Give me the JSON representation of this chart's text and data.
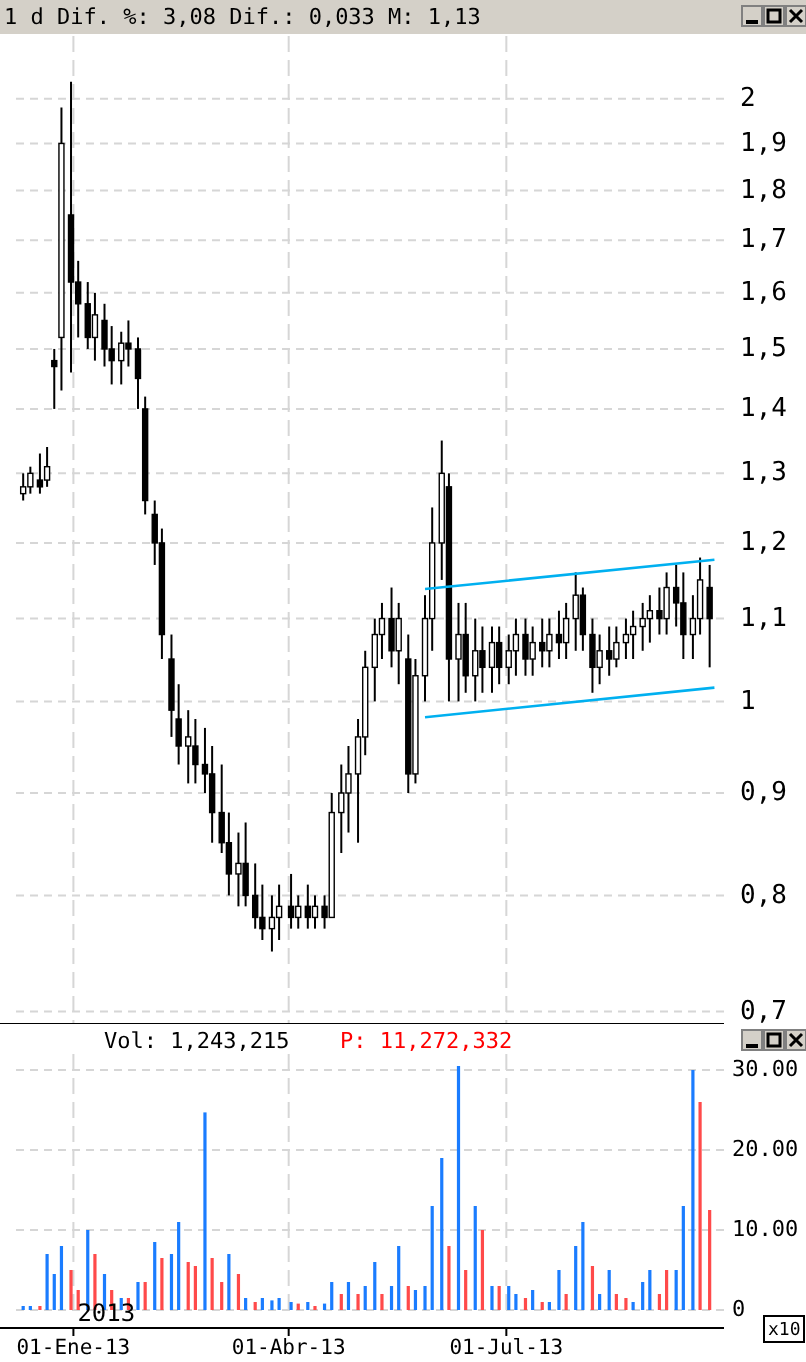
{
  "chart_data": [
    {
      "type": "candlestick",
      "title": "1 d Dif. %: 3,08 Dif.: 0,033 M: 1,13",
      "color": "#000000",
      "log": true,
      "grid": true,
      "tick_labels": "y",
      "xlim": [
        "2012-12-08",
        "2013-09-30"
      ],
      "xticks": [
        {
          "value": "2013-01-01",
          "label": null
        },
        {
          "value": "2013-04-01",
          "label": null
        },
        {
          "value": "2013-07-01",
          "label": null
        }
      ],
      "ylim": [
        0.69,
        2.15
      ],
      "yticks": [
        {
          "value": 0.7,
          "label": "0,7"
        },
        {
          "value": 0.8,
          "label": "0,8"
        },
        {
          "value": 0.9,
          "label": "0,9"
        },
        1,
        {
          "value": 1.1,
          "label": "1,1"
        },
        {
          "value": 1.2,
          "label": "1,2"
        },
        {
          "value": 1.3,
          "label": "1,3"
        },
        {
          "value": 1.4,
          "label": "1,4"
        },
        {
          "value": 1.5,
          "label": "1,5"
        },
        {
          "value": 1.6,
          "label": "1,6"
        },
        {
          "value": 1.7,
          "label": "1,7"
        },
        {
          "value": 1.8,
          "label": "1,8"
        },
        {
          "value": 1.9,
          "label": "1,9"
        },
        2
      ],
      "x": [
        "2012-12-11",
        "2012-12-14",
        "2012-12-18",
        "2012-12-21",
        "2012-12-24",
        "2012-12-27",
        "2012-12-31",
        "2013-01-03",
        "2013-01-07",
        "2013-01-10",
        "2013-01-14",
        "2013-01-17",
        "2013-01-21",
        "2013-01-24",
        "2013-01-28",
        "2013-01-31",
        "2013-02-04",
        "2013-02-07",
        "2013-02-11",
        "2013-02-14",
        "2013-02-18",
        "2013-02-21",
        "2013-02-25",
        "2013-02-28",
        "2013-03-04",
        "2013-03-07",
        "2013-03-11",
        "2013-03-14",
        "2013-03-18",
        "2013-03-21",
        "2013-03-25",
        "2013-03-28",
        "2013-04-02",
        "2013-04-05",
        "2013-04-09",
        "2013-04-12",
        "2013-04-16",
        "2013-04-19",
        "2013-04-23",
        "2013-04-26",
        "2013-04-30",
        "2013-05-03",
        "2013-05-07",
        "2013-05-10",
        "2013-05-14",
        "2013-05-17",
        "2013-05-21",
        "2013-05-24",
        "2013-05-28",
        "2013-05-31",
        "2013-06-04",
        "2013-06-07",
        "2013-06-11",
        "2013-06-14",
        "2013-06-18",
        "2013-06-21",
        "2013-06-25",
        "2013-06-28",
        "2013-07-02",
        "2013-07-05",
        "2013-07-09",
        "2013-07-12",
        "2013-07-16",
        "2013-07-19",
        "2013-07-23",
        "2013-07-26",
        "2013-07-30",
        "2013-08-02",
        "2013-08-06",
        "2013-08-09",
        "2013-08-13",
        "2013-08-16",
        "2013-08-20",
        "2013-08-23",
        "2013-08-27",
        "2013-08-30",
        "2013-09-03",
        "2013-09-06",
        "2013-09-10",
        "2013-09-13",
        "2013-09-17",
        "2013-09-20",
        "2013-09-24"
      ],
      "ohlc": [
        [
          1.27,
          1.3,
          1.26,
          1.28
        ],
        [
          1.28,
          1.31,
          1.27,
          1.3
        ],
        [
          1.29,
          1.33,
          1.27,
          1.28
        ],
        [
          1.29,
          1.34,
          1.28,
          1.31
        ],
        [
          1.48,
          1.5,
          1.4,
          1.47
        ],
        [
          1.52,
          1.98,
          1.43,
          1.9
        ],
        [
          1.75,
          2.04,
          1.46,
          1.62
        ],
        [
          1.62,
          1.66,
          1.52,
          1.58
        ],
        [
          1.58,
          1.62,
          1.5,
          1.52
        ],
        [
          1.52,
          1.6,
          1.48,
          1.56
        ],
        [
          1.55,
          1.58,
          1.47,
          1.5
        ],
        [
          1.5,
          1.54,
          1.44,
          1.48
        ],
        [
          1.48,
          1.53,
          1.44,
          1.51
        ],
        [
          1.51,
          1.55,
          1.47,
          1.5
        ],
        [
          1.5,
          1.52,
          1.4,
          1.45
        ],
        [
          1.4,
          1.42,
          1.24,
          1.26
        ],
        [
          1.24,
          1.26,
          1.17,
          1.2
        ],
        [
          1.2,
          1.22,
          1.05,
          1.08
        ],
        [
          1.05,
          1.08,
          0.96,
          0.99
        ],
        [
          0.98,
          1.02,
          0.93,
          0.95
        ],
        [
          0.95,
          0.99,
          0.91,
          0.96
        ],
        [
          0.95,
          0.98,
          0.91,
          0.93
        ],
        [
          0.93,
          0.97,
          0.9,
          0.92
        ],
        [
          0.92,
          0.95,
          0.85,
          0.88
        ],
        [
          0.88,
          0.93,
          0.84,
          0.85
        ],
        [
          0.85,
          0.88,
          0.8,
          0.82
        ],
        [
          0.82,
          0.86,
          0.79,
          0.83
        ],
        [
          0.83,
          0.87,
          0.79,
          0.8
        ],
        [
          0.8,
          0.83,
          0.77,
          0.78
        ],
        [
          0.78,
          0.81,
          0.76,
          0.77
        ],
        [
          0.77,
          0.8,
          0.75,
          0.78
        ],
        [
          0.78,
          0.81,
          0.76,
          0.79
        ],
        [
          0.79,
          0.82,
          0.77,
          0.78
        ],
        [
          0.78,
          0.8,
          0.77,
          0.79
        ],
        [
          0.79,
          0.81,
          0.77,
          0.78
        ],
        [
          0.78,
          0.8,
          0.77,
          0.79
        ],
        [
          0.79,
          0.8,
          0.77,
          0.78
        ],
        [
          0.78,
          0.9,
          0.78,
          0.88
        ],
        [
          0.88,
          0.93,
          0.84,
          0.9
        ],
        [
          0.9,
          0.95,
          0.86,
          0.92
        ],
        [
          0.92,
          0.98,
          0.85,
          0.96
        ],
        [
          0.96,
          1.06,
          0.94,
          1.04
        ],
        [
          1.04,
          1.1,
          1.0,
          1.08
        ],
        [
          1.08,
          1.12,
          1.05,
          1.1
        ],
        [
          1.1,
          1.14,
          1.04,
          1.06
        ],
        [
          1.06,
          1.12,
          1.02,
          1.1
        ],
        [
          1.05,
          1.08,
          0.9,
          0.92
        ],
        [
          0.92,
          1.05,
          0.91,
          1.03
        ],
        [
          1.03,
          1.13,
          1.0,
          1.1
        ],
        [
          1.1,
          1.25,
          1.06,
          1.2
        ],
        [
          1.2,
          1.35,
          1.15,
          1.3
        ],
        [
          1.28,
          1.3,
          1.0,
          1.05
        ],
        [
          1.05,
          1.12,
          1.0,
          1.08
        ],
        [
          1.08,
          1.12,
          1.01,
          1.03
        ],
        [
          1.03,
          1.1,
          1.0,
          1.06
        ],
        [
          1.06,
          1.09,
          1.01,
          1.04
        ],
        [
          1.04,
          1.09,
          1.01,
          1.07
        ],
        [
          1.07,
          1.09,
          1.02,
          1.04
        ],
        [
          1.04,
          1.08,
          1.02,
          1.06
        ],
        [
          1.06,
          1.1,
          1.03,
          1.08
        ],
        [
          1.08,
          1.1,
          1.03,
          1.05
        ],
        [
          1.05,
          1.09,
          1.03,
          1.07
        ],
        [
          1.07,
          1.1,
          1.04,
          1.06
        ],
        [
          1.06,
          1.1,
          1.04,
          1.08
        ],
        [
          1.08,
          1.11,
          1.05,
          1.07
        ],
        [
          1.07,
          1.12,
          1.05,
          1.1
        ],
        [
          1.1,
          1.16,
          1.06,
          1.13
        ],
        [
          1.13,
          1.14,
          1.06,
          1.08
        ],
        [
          1.08,
          1.1,
          1.01,
          1.04
        ],
        [
          1.04,
          1.08,
          1.02,
          1.06
        ],
        [
          1.06,
          1.09,
          1.03,
          1.05
        ],
        [
          1.05,
          1.09,
          1.04,
          1.07
        ],
        [
          1.07,
          1.1,
          1.05,
          1.08
        ],
        [
          1.08,
          1.11,
          1.05,
          1.09
        ],
        [
          1.09,
          1.12,
          1.06,
          1.1
        ],
        [
          1.1,
          1.13,
          1.07,
          1.11
        ],
        [
          1.11,
          1.14,
          1.08,
          1.1
        ],
        [
          1.1,
          1.16,
          1.08,
          1.14
        ],
        [
          1.14,
          1.17,
          1.09,
          1.12
        ],
        [
          1.12,
          1.16,
          1.05,
          1.08
        ],
        [
          1.08,
          1.13,
          1.05,
          1.1
        ],
        [
          1.1,
          1.18,
          1.08,
          1.15
        ],
        [
          1.14,
          1.17,
          1.04,
          1.1
        ]
      ],
      "series": [
        {
          "type": "line",
          "color": "#00b0f0",
          "x": [
            "2013-05-28",
            "2013-09-26"
          ],
          "values": [
            1.138,
            1.177
          ]
        },
        {
          "type": "line",
          "color": "#00b0f0",
          "x": [
            "2013-05-28",
            "2013-09-26"
          ],
          "values": [
            0.982,
            1.016
          ]
        }
      ]
    },
    {
      "type": "bar",
      "title": "Vol: 1,243,215",
      "subtitle": "P: 11,272,332",
      "grid": true,
      "xlim": [
        "2012-12-08",
        "2013-09-30"
      ],
      "xticks": [
        {
          "value": "2013-01-01",
          "label": "01-Ene-13"
        },
        {
          "value": "2013-04-01",
          "label": "01-Abr-13"
        },
        {
          "value": "2013-07-01",
          "label": "01-Jul-13"
        }
      ],
      "ylim": [
        0,
        32
      ],
      "yticks": [
        0,
        {
          "value": 10,
          "label": "10.00"
        },
        {
          "value": 20,
          "label": "20.00"
        },
        {
          "value": 30,
          "label": "30.00"
        }
      ],
      "annotations": [
        "2013",
        "x10"
      ],
      "x": [
        "2012-12-11",
        "2012-12-14",
        "2012-12-18",
        "2012-12-21",
        "2012-12-24",
        "2012-12-27",
        "2012-12-31",
        "2013-01-03",
        "2013-01-07",
        "2013-01-10",
        "2013-01-14",
        "2013-01-17",
        "2013-01-21",
        "2013-01-24",
        "2013-01-28",
        "2013-01-31",
        "2013-02-04",
        "2013-02-07",
        "2013-02-11",
        "2013-02-14",
        "2013-02-18",
        "2013-02-21",
        "2013-02-25",
        "2013-02-28",
        "2013-03-04",
        "2013-03-07",
        "2013-03-11",
        "2013-03-14",
        "2013-03-18",
        "2013-03-21",
        "2013-03-25",
        "2013-03-28",
        "2013-04-02",
        "2013-04-05",
        "2013-04-09",
        "2013-04-12",
        "2013-04-16",
        "2013-04-19",
        "2013-04-23",
        "2013-04-26",
        "2013-04-30",
        "2013-05-03",
        "2013-05-07",
        "2013-05-10",
        "2013-05-14",
        "2013-05-17",
        "2013-05-21",
        "2013-05-24",
        "2013-05-28",
        "2013-05-31",
        "2013-06-04",
        "2013-06-07",
        "2013-06-11",
        "2013-06-14",
        "2013-06-18",
        "2013-06-21",
        "2013-06-25",
        "2013-06-28",
        "2013-07-02",
        "2013-07-05",
        "2013-07-09",
        "2013-07-12",
        "2013-07-16",
        "2013-07-19",
        "2013-07-23",
        "2013-07-26",
        "2013-07-30",
        "2013-08-02",
        "2013-08-06",
        "2013-08-09",
        "2013-08-13",
        "2013-08-16",
        "2013-08-20",
        "2013-08-23",
        "2013-08-27",
        "2013-08-30",
        "2013-09-03",
        "2013-09-06",
        "2013-09-10",
        "2013-09-13",
        "2013-09-17",
        "2013-09-20",
        "2013-09-24"
      ],
      "values": [
        0.5,
        0.5,
        0.5,
        7,
        4.5,
        8,
        5,
        2.5,
        10,
        7,
        4.5,
        2.5,
        1.5,
        1.5,
        3.5,
        3.5,
        8.5,
        6.5,
        7,
        11,
        6,
        5.5,
        24.7,
        6.5,
        3.5,
        7,
        4.5,
        1.5,
        1,
        1.5,
        1.2,
        1.5,
        1,
        0.8,
        1,
        0.5,
        0.8,
        3.5,
        2,
        3.5,
        2,
        3,
        6,
        2,
        3,
        8,
        3,
        2.5,
        3,
        13,
        19,
        8,
        30.5,
        5,
        13,
        10,
        3,
        3,
        3,
        2,
        1.5,
        2.5,
        1,
        1,
        5,
        2,
        8,
        11,
        5.5,
        2,
        5,
        2,
        1.5,
        1,
        3.5,
        5,
        2,
        5,
        5,
        13,
        30,
        26,
        12.5
      ],
      "colors": [
        "#1a7cff",
        "#1a7cff",
        "#ff4a4a",
        "#1a7cff",
        "#1a7cff",
        "#1a7cff",
        "#ff4a4a",
        "#ff4a4a",
        "#1a7cff",
        "#ff4a4a",
        "#1a7cff",
        "#ff4a4a",
        "#1a7cff",
        "#ff4a4a",
        "#1a7cff",
        "#ff4a4a",
        "#1a7cff",
        "#ff4a4a",
        "#1a7cff",
        "#1a7cff",
        "#ff4a4a",
        "#ff4a4a",
        "#1a7cff",
        "#ff4a4a",
        "#ff4a4a",
        "#1a7cff",
        "#ff4a4a",
        "#1a7cff",
        "#ff4a4a",
        "#1a7cff",
        "#1a7cff",
        "#1a7cff",
        "#1a7cff",
        "#ff4a4a",
        "#1a7cff",
        "#ff4a4a",
        "#1a7cff",
        "#1a7cff",
        "#ff4a4a",
        "#1a7cff",
        "#ff4a4a",
        "#1a7cff",
        "#1a7cff",
        "#ff4a4a",
        "#1a7cff",
        "#1a7cff",
        "#ff4a4a",
        "#1a7cff",
        "#1a7cff",
        "#1a7cff",
        "#1a7cff",
        "#ff4a4a",
        "#1a7cff",
        "#ff4a4a",
        "#1a7cff",
        "#ff4a4a",
        "#1a7cff",
        "#ff4a4a",
        "#1a7cff",
        "#1a7cff",
        "#ff4a4a",
        "#1a7cff",
        "#ff4a4a",
        "#1a7cff",
        "#1a7cff",
        "#ff4a4a",
        "#1a7cff",
        "#1a7cff",
        "#ff4a4a",
        "#1a7cff",
        "#1a7cff",
        "#ff4a4a",
        "#ff4a4a",
        "#1a7cff",
        "#1a7cff",
        "#1a7cff",
        "#ff4a4a",
        "#ff4a4a",
        "#1a7cff",
        "#1a7cff",
        "#1a7cff",
        "#ff4a4a",
        "#ff4a4a"
      ]
    }
  ]
}
